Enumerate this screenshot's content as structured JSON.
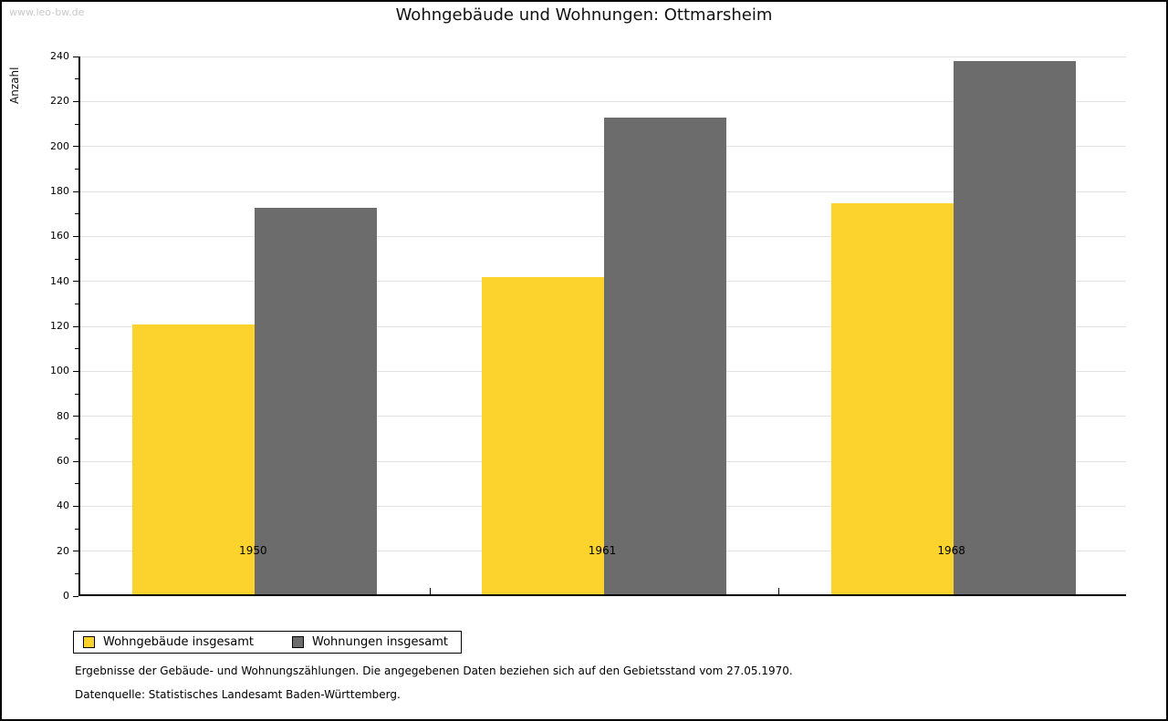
{
  "watermark": "www.leo-bw.de",
  "title": "Wohngebäude und Wohnungen: Ottmarsheim",
  "footnotes": {
    "line1": "Ergebnisse der Gebäude- und Wohnungszählungen. Die angegebenen Daten beziehen sich auf den Gebietsstand vom 27.05.1970.",
    "line2": "Datenquelle: Statistisches Landesamt Baden-Württemberg."
  },
  "chart_data": {
    "type": "bar",
    "title": "Wohngebäude und Wohnungen: Ottmarsheim",
    "ylabel": "Anzahl",
    "xlabel": "",
    "categories": [
      "1950",
      "1961",
      "1968"
    ],
    "series": [
      {
        "name": "Wohngebäude insgesamt",
        "color": "#FCD32D",
        "values": [
          120,
          141,
          174
        ]
      },
      {
        "name": "Wohnungen insgesamt",
        "color": "#6C6C6C",
        "values": [
          172,
          212,
          237
        ]
      }
    ],
    "ylim": [
      0,
      240
    ],
    "ytick_major": 20,
    "ytick_minor": 10,
    "grid": "horizontal-major-lines",
    "gridline_color": "#e2e2e2",
    "legend_position": "bottom-left"
  }
}
